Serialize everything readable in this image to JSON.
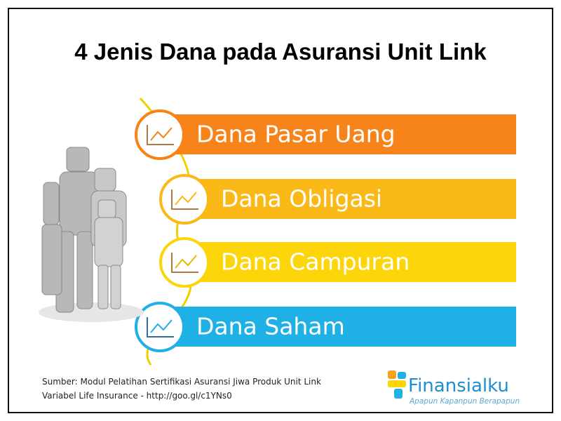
{
  "title": "4 Jenis Dana pada Asuransi Unit Link",
  "items": [
    {
      "label": "Dana Pasar Uang"
    },
    {
      "label": "Dana Obligasi"
    },
    {
      "label": "Dana Campuran"
    },
    {
      "label": "Dana Saham"
    }
  ],
  "source": {
    "line1": "Sumber:  Modul Pelatihan Sertifikasi Asuransi Jiwa Produk Unit Link",
    "line2": "Variabel Life Insurance - http://goo.gl/c1YNs0"
  },
  "logo": {
    "name": "Finansialku",
    "tagline": "Apapun Kapanpun Berapapun"
  }
}
